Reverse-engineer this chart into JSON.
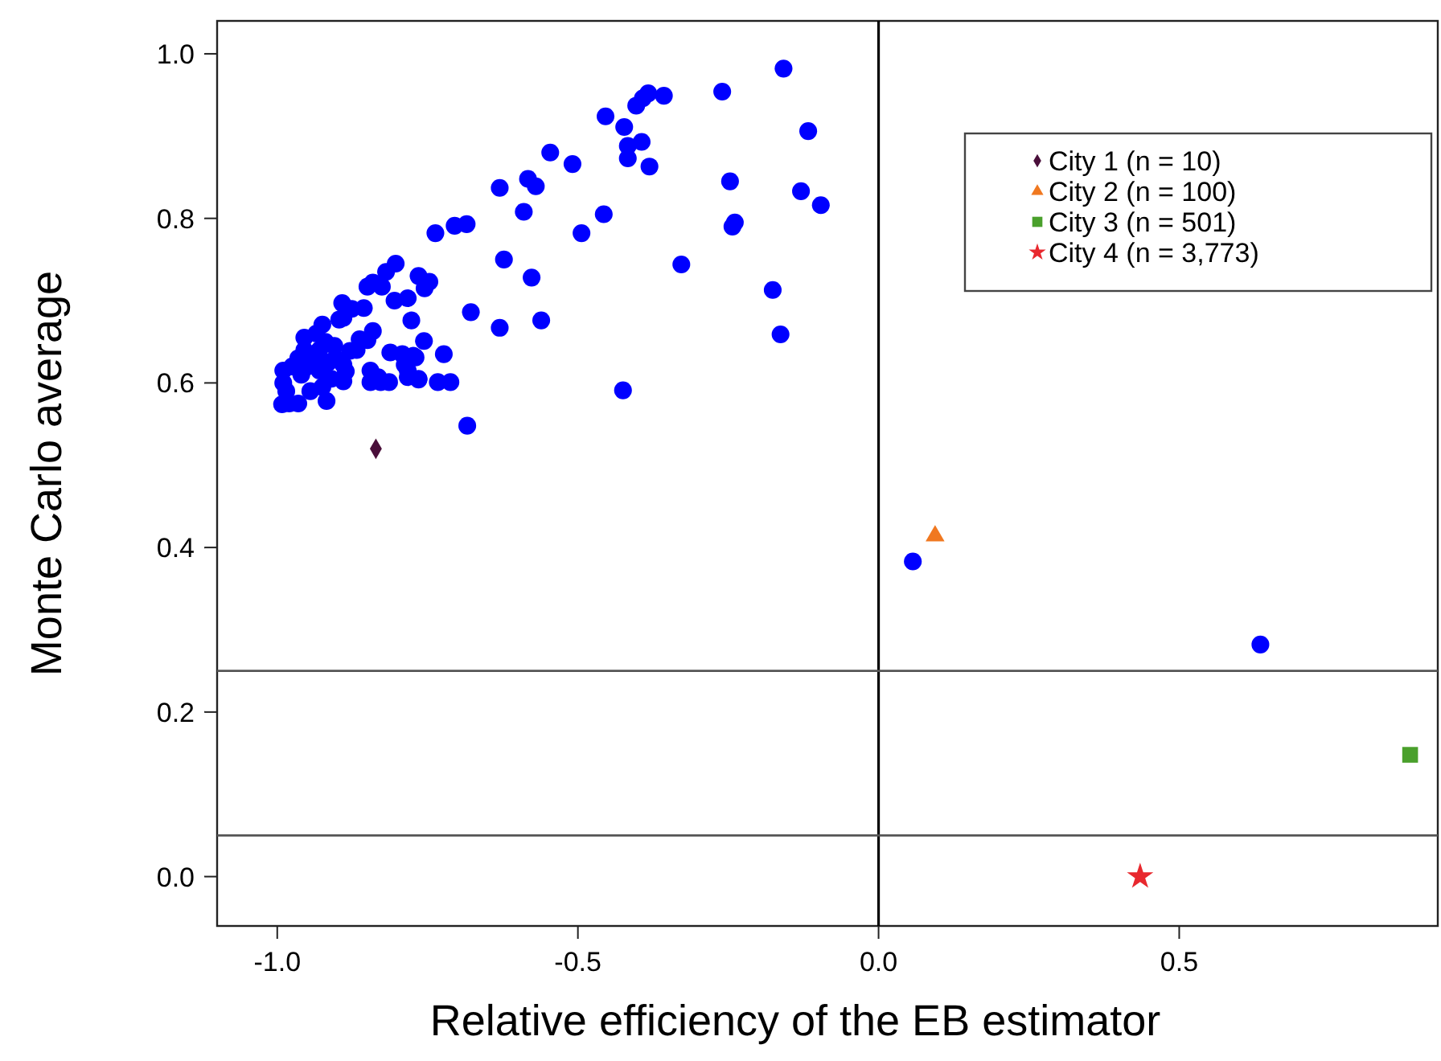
{
  "chart_data": {
    "type": "scatter",
    "xlabel": "Relative efficiency of the EB estimator",
    "ylabel": "Monte Carlo average",
    "xlim": [
      -1.1,
      0.93
    ],
    "ylim": [
      -0.06,
      1.04
    ],
    "xticks": [
      {
        "value": -1,
        "label": "-1.0"
      },
      {
        "value": -0.5,
        "label": "-0.5"
      },
      {
        "value": 0,
        "label": "0.0"
      },
      {
        "value": 0.5,
        "label": "0.5"
      }
    ],
    "yticks": [
      {
        "value": 0,
        "label": "0.0"
      },
      {
        "value": 0.2,
        "label": "0.2"
      },
      {
        "value": 0.4,
        "label": "0.4"
      },
      {
        "value": 0.6,
        "label": "0.6"
      },
      {
        "value": 0.8,
        "label": "0.8"
      },
      {
        "value": 1,
        "label": "1.0"
      }
    ],
    "grid": false,
    "legend": "top right",
    "ref_lines": [
      {
        "axis": "x",
        "value": 0,
        "color": "#000000"
      },
      {
        "axis": "y",
        "value": 0.25,
        "color": "#555555"
      },
      {
        "axis": "y",
        "value": 0.05,
        "color": "#555555"
      }
    ],
    "series": [
      {
        "color": "#0000ff",
        "marker": "circle",
        "x": [
          -0.158,
          -0.26,
          -0.117,
          -0.357,
          -0.383,
          -0.392,
          -0.403,
          -0.454,
          -0.423,
          -0.417,
          -0.394,
          -0.417,
          -0.381,
          -0.546,
          -0.509,
          -0.63,
          -0.583,
          -0.57,
          -0.59,
          -0.457,
          -0.494,
          -0.247,
          -0.129,
          -0.096,
          -0.239,
          -0.243,
          -0.328,
          -0.176,
          -0.163,
          -0.737,
          -0.705,
          -0.685,
          -0.623,
          -0.577,
          -0.678,
          -0.63,
          -0.561,
          -0.425,
          -0.805,
          -0.783,
          -0.777,
          -0.756,
          -0.723,
          -0.792,
          -0.77,
          -0.783,
          -0.765,
          -0.733,
          -0.712,
          -0.814,
          -0.684,
          -0.803,
          -0.819,
          -0.841,
          -0.85,
          -0.826,
          -0.765,
          -0.747,
          -0.755,
          -0.892,
          -0.876,
          -0.89,
          -0.897,
          -0.856,
          -0.925,
          -0.841,
          -0.85,
          -0.863,
          -0.868,
          -0.879,
          -0.812,
          -0.774,
          -0.788,
          -0.903,
          -0.89,
          -0.886,
          -0.845,
          -0.832,
          -0.828,
          -0.783,
          -0.765,
          -0.845,
          -0.89,
          -0.918,
          -0.99,
          -0.985,
          -0.98,
          -0.975,
          -0.965,
          -0.96,
          -0.955,
          -0.95,
          -0.94,
          -0.935,
          -0.93,
          -0.93,
          -0.925,
          -0.92,
          -0.915,
          -0.91,
          -0.905,
          -0.99,
          -0.965,
          -0.955,
          -0.945,
          -0.992,
          0.057,
          0.635
        ],
        "values": [
          0.982,
          0.954,
          0.906,
          0.949,
          0.952,
          0.946,
          0.937,
          0.924,
          0.911,
          0.888,
          0.893,
          0.873,
          0.863,
          0.88,
          0.866,
          0.837,
          0.848,
          0.839,
          0.808,
          0.805,
          0.782,
          0.845,
          0.833,
          0.816,
          0.795,
          0.79,
          0.744,
          0.713,
          0.659,
          0.782,
          0.791,
          0.793,
          0.75,
          0.728,
          0.686,
          0.667,
          0.676,
          0.591,
          0.7,
          0.703,
          0.676,
          0.651,
          0.635,
          0.635,
          0.631,
          0.615,
          0.605,
          0.601,
          0.601,
          0.601,
          0.548,
          0.745,
          0.735,
          0.722,
          0.717,
          0.717,
          0.73,
          0.723,
          0.715,
          0.697,
          0.69,
          0.679,
          0.677,
          0.691,
          0.671,
          0.663,
          0.652,
          0.653,
          0.64,
          0.639,
          0.637,
          0.633,
          0.622,
          0.63,
          0.622,
          0.614,
          0.615,
          0.607,
          0.601,
          0.607,
          0.604,
          0.601,
          0.602,
          0.578,
          0.6,
          0.59,
          0.575,
          0.62,
          0.63,
          0.61,
          0.64,
          0.62,
          0.63,
          0.66,
          0.64,
          0.615,
          0.595,
          0.65,
          0.625,
          0.605,
          0.645,
          0.615,
          0.575,
          0.655,
          0.59,
          0.574,
          0.383,
          0.282
        ]
      },
      {
        "name": "City 1 (n = 10)",
        "color": "#4a0f3a",
        "marker": "diamond",
        "x": [
          -0.836
        ],
        "values": [
          0.52
        ]
      },
      {
        "name": "City 2 (n = 100)",
        "color": "#f07820",
        "marker": "triangle",
        "x": [
          0.094
        ],
        "values": [
          0.414
        ]
      },
      {
        "name": "City 3 (n = 501)",
        "color": "#4aa02c",
        "marker": "square",
        "x": [
          0.884
        ],
        "values": [
          0.148
        ]
      },
      {
        "name": "City 4 (n = 3,773)",
        "color": "#e8282e",
        "marker": "star",
        "x": [
          0.435
        ],
        "values": [
          0.0
        ]
      }
    ]
  }
}
